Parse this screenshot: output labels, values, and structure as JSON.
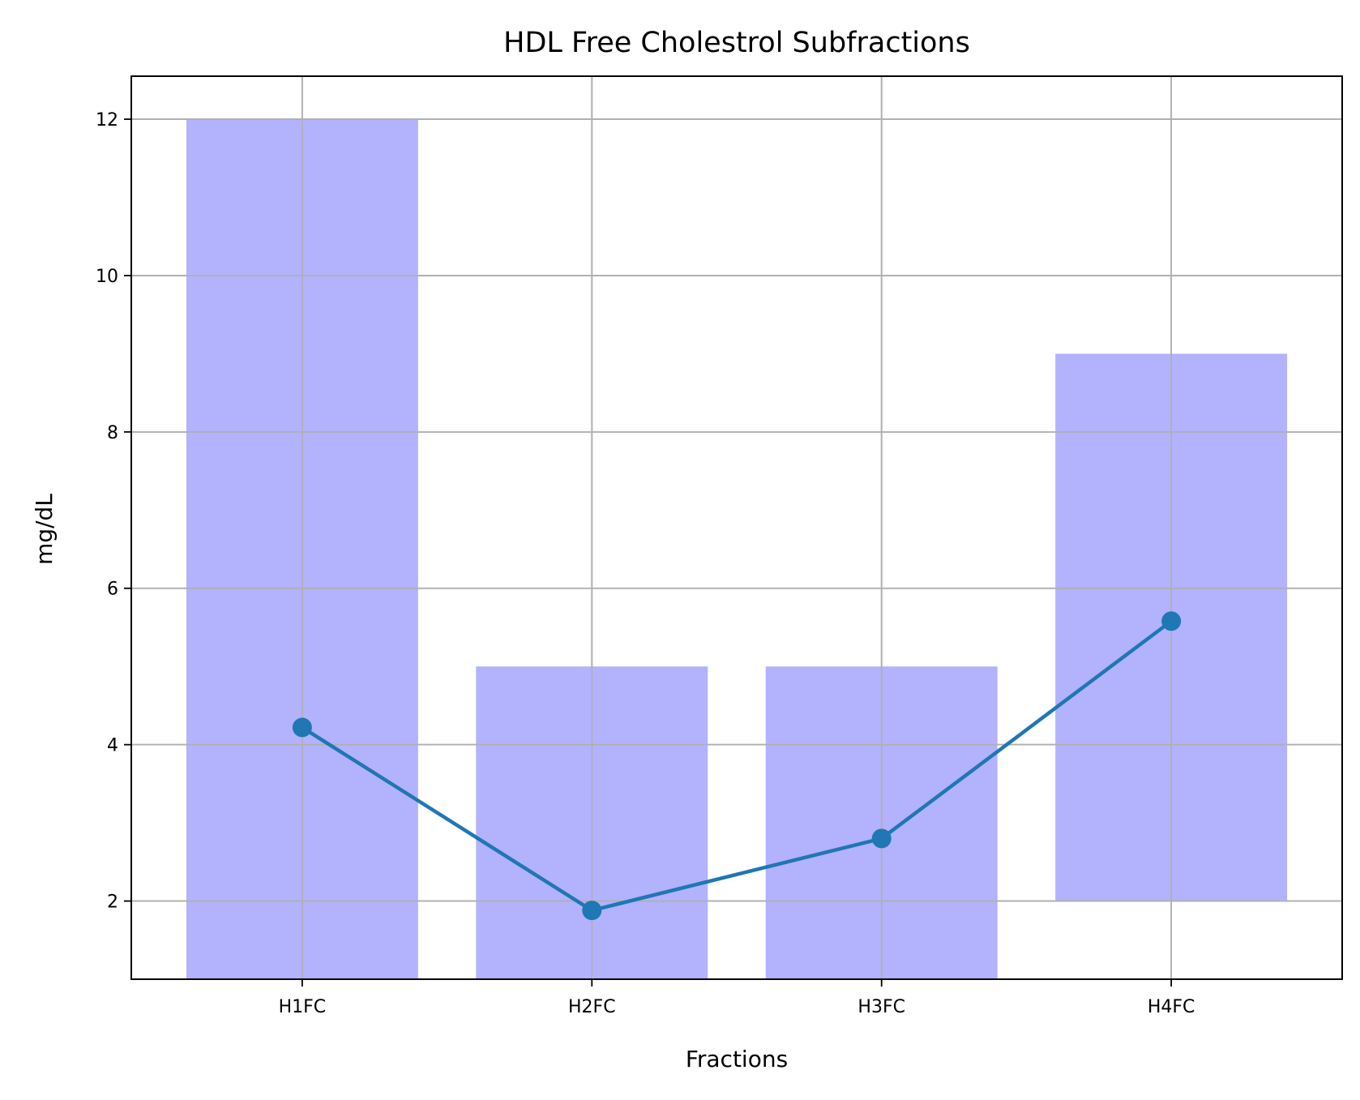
{
  "chart_data": {
    "type": "bar",
    "title": "HDL Free Cholestrol Subfractions",
    "xlabel": "Fractions",
    "ylabel": "mg/dL",
    "categories": [
      "H1FC",
      "H2FC",
      "H3FC",
      "H4FC"
    ],
    "ylim": [
      1.0,
      12.55
    ],
    "y_ticks": [
      "2",
      "4",
      "6",
      "8",
      "10",
      "12"
    ],
    "grid": true,
    "series": [
      {
        "kind": "range-bar",
        "color": "#b2b2fd",
        "low": [
          1.0,
          1.0,
          1.0,
          2.0
        ],
        "high": [
          12.0,
          5.0,
          5.0,
          9.0
        ]
      },
      {
        "kind": "line",
        "color": "#1f77b4",
        "marker": "circle",
        "values": [
          4.22,
          1.88,
          2.8,
          5.58
        ]
      }
    ]
  }
}
